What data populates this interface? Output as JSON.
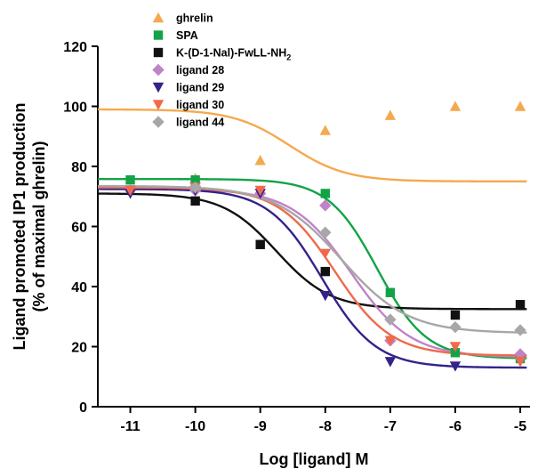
{
  "chart_data": {
    "type": "scatter",
    "title": "",
    "xlabel": "Log [ligand] M",
    "ylabel_line1": "Ligand promoted IP1 production",
    "ylabel_line2": "(% of maximal ghrelin)",
    "xlim": [
      -11.5,
      -4.85
    ],
    "ylim": [
      0,
      120
    ],
    "x_ticks": [
      -11,
      -10,
      -9,
      -8,
      -7,
      -6,
      -5
    ],
    "x_tick_labels": [
      "-11",
      "-10",
      "-9",
      "-8",
      "-7",
      "-6",
      "-5"
    ],
    "y_ticks": [
      0,
      20,
      40,
      60,
      80,
      100,
      120
    ],
    "y_tick_labels": [
      "0",
      "20",
      "40",
      "60",
      "80",
      "100",
      "120"
    ],
    "grid": false,
    "legend_position": "top-left",
    "x": [
      -11,
      -10,
      -9,
      -8,
      -7,
      -6,
      -5
    ],
    "series": [
      {
        "name": "ghrelin",
        "color": "#F5A94E",
        "marker": "triangle-up",
        "values": [
          null,
          76,
          82,
          92,
          97,
          100,
          100
        ],
        "fit": {
          "bottom": 75,
          "top": 99,
          "logEC50": -8.55,
          "hill": 1
        }
      },
      {
        "name": "SPA",
        "color": "#13A347",
        "marker": "square",
        "values": [
          75.5,
          75.5,
          null,
          71,
          38,
          18,
          16
        ],
        "fit": {
          "bottom": 16,
          "top": 75.8,
          "logEC50": -7.2,
          "hill": 1.15
        }
      },
      {
        "name": "K-(D-1-Nal)-FwLL-NH",
        "name_sub": "2",
        "color": "#111111",
        "marker": "square",
        "values": [
          null,
          68.5,
          54,
          45,
          null,
          30.5,
          34
        ],
        "fit": {
          "bottom": 32.5,
          "top": 71,
          "logEC50": -8.75,
          "hill": 1.05
        }
      },
      {
        "name": "ligand 28",
        "color": "#C083C6",
        "marker": "diamond",
        "values": [
          72,
          72,
          71,
          67,
          22,
          null,
          17.5
        ],
        "fit": {
          "bottom": 16.5,
          "top": 72.5,
          "logEC50": -7.6,
          "hill": 0.95
        }
      },
      {
        "name": "ligand 29",
        "color": "#33238A",
        "marker": "triangle-down",
        "values": [
          71,
          72,
          71,
          37,
          15,
          13.5,
          null
        ],
        "fit": {
          "bottom": 13,
          "top": 72.5,
          "logEC50": -8.05,
          "hill": 1.05
        }
      },
      {
        "name": "ligand 30",
        "color": "#EF6A4C",
        "marker": "triangle-down",
        "values": [
          72,
          73,
          72,
          51,
          22,
          20,
          15
        ],
        "fit": {
          "bottom": 17,
          "top": 73,
          "logEC50": -7.85,
          "hill": 1.0
        }
      },
      {
        "name": "ligand 44",
        "color": "#A7A7A7",
        "marker": "diamond",
        "values": [
          null,
          73,
          null,
          58,
          29,
          26.5,
          25.5
        ],
        "fit": {
          "bottom": 24.5,
          "top": 73.5,
          "logEC50": -7.75,
          "hill": 0.85
        }
      }
    ]
  }
}
